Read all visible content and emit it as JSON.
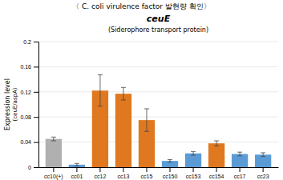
{
  "chart_data": {
    "type": "bar",
    "title": "〈 C. coli virulence factor 발현량 확인〉",
    "subtitles": [
      "ceuE",
      "(Siderophore transport protein)"
    ],
    "ylabel": [
      "Expression level",
      "(ceuE/aspA)"
    ],
    "categories": [
      "cc10(+)",
      "cc01",
      "cc12",
      "cc13",
      "cc15",
      "cc150",
      "cc153",
      "cc154",
      "cc17",
      "cc23"
    ],
    "values": [
      0.045,
      0.004,
      0.122,
      0.117,
      0.075,
      0.01,
      0.022,
      0.038,
      0.021,
      0.02
    ],
    "errors": [
      0.003,
      0.002,
      0.025,
      0.01,
      0.018,
      0.002,
      0.003,
      0.004,
      0.003,
      0.003
    ],
    "colors": [
      "#b0b0b0",
      "#5b9bd5",
      "#e07820",
      "#e07820",
      "#e07820",
      "#5b9bd5",
      "#5b9bd5",
      "#e07820",
      "#5b9bd5",
      "#5b9bd5"
    ],
    "ylim": [
      0,
      0.2
    ],
    "yticks": [
      0,
      0.04,
      0.08,
      0.12,
      0.16,
      0.2
    ],
    "grid": true
  }
}
